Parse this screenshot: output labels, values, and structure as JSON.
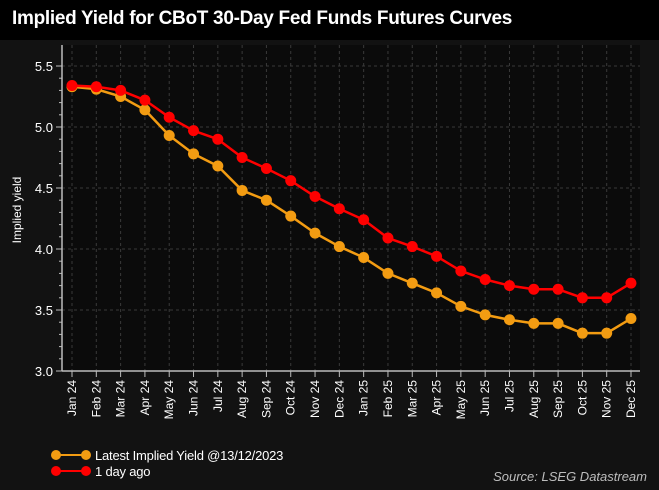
{
  "chart_data": {
    "type": "line",
    "title": "Implied Yield for CBoT 30-Day Fed Funds Futures Curves",
    "xlabel": "",
    "ylabel": "Implied yield",
    "ylim": [
      3.0,
      5.5
    ],
    "yticks": [
      "3.0",
      "3.5",
      "4.0",
      "4.5",
      "5.0",
      "5.5"
    ],
    "ytick_values": [
      3.0,
      3.5,
      4.0,
      4.5,
      5.0,
      5.5
    ],
    "grid": true,
    "legend_position": "bottom-left",
    "categories": [
      "Jan 24",
      "Feb 24",
      "Mar 24",
      "Apr 24",
      "May 24",
      "Jun 24",
      "Jul 24",
      "Aug 24",
      "Sep 24",
      "Oct 24",
      "Nov 24",
      "Dec 24",
      "Jan 25",
      "Feb 25",
      "Mar 25",
      "Apr 25",
      "May 25",
      "Jun 25",
      "Jul 25",
      "Aug 25",
      "Sep 25",
      "Oct 25",
      "Nov 25",
      "Dec 25"
    ],
    "series": [
      {
        "name": "Latest Implied Yield @13/12/2023",
        "color": "#f39c12",
        "values": [
          5.33,
          5.31,
          5.25,
          5.14,
          4.93,
          4.78,
          4.68,
          4.48,
          4.4,
          4.27,
          4.13,
          4.02,
          3.93,
          3.8,
          3.72,
          3.64,
          3.53,
          3.46,
          3.42,
          3.39,
          3.39,
          3.31,
          3.31,
          3.43
        ]
      },
      {
        "name": "1 day ago",
        "color": "#ff0000",
        "values": [
          5.34,
          5.33,
          5.3,
          5.22,
          5.08,
          4.97,
          4.9,
          4.75,
          4.66,
          4.56,
          4.43,
          4.33,
          4.24,
          4.09,
          4.02,
          3.94,
          3.82,
          3.75,
          3.7,
          3.67,
          3.67,
          3.6,
          3.6,
          3.72
        ]
      }
    ]
  },
  "source": "Source: LSEG Datastream"
}
